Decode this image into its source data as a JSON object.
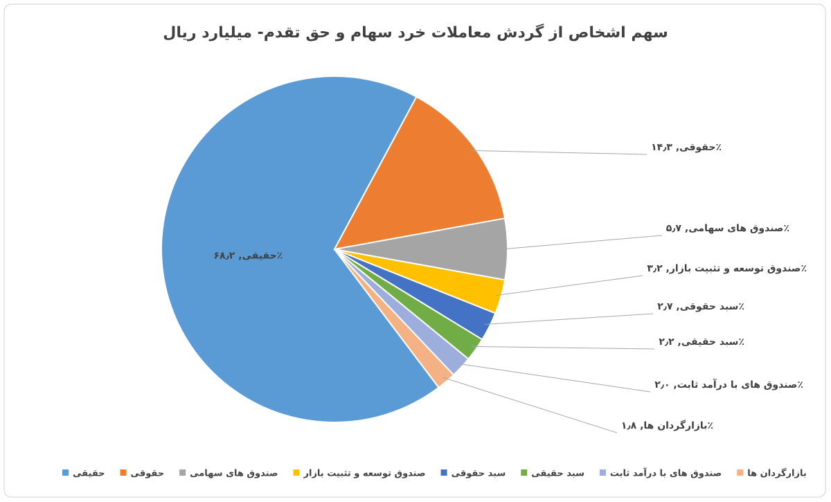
{
  "chart_data": {
    "type": "pie",
    "title": "سهم اشخاص از گردش معاملات خرد سهام و حق تقدم- میلیارد ریال",
    "categories": [
      "حقیقی",
      "حقوقی",
      "صندوق های سهامی",
      "صندوق توسعه و تثبیت بازار",
      "سبد حقوقی",
      "سبد حقیقی",
      "صندوق های با درآمد ثابت",
      "بازارگردان ها"
    ],
    "values": [
      68.2,
      14.3,
      5.7,
      3.2,
      2.7,
      2.2,
      2.0,
      1.8
    ],
    "value_labels": [
      "حقیقی, ۶۸٫۲٪",
      "حقوقی, ۱۴٫۳٪",
      "صندوق های سهامی, ۵٫۷٪",
      "صندوق توسعه و تثبیت بازار, ۳٫۲٪",
      "سبد حقوقی, ۲٫۷٪",
      "سبد حقیقی, ۲٫۲٪",
      "صندوق های با درآمد ثابت, ۲٫۰٪",
      "بازارگردان ها, ۱٫۸٪"
    ],
    "colors": [
      "#5b9bd5",
      "#ed7d31",
      "#a5a5a5",
      "#ffc000",
      "#4472c4",
      "#70ad47",
      "#9eaedc",
      "#f4b183"
    ],
    "legend": "bottom"
  }
}
